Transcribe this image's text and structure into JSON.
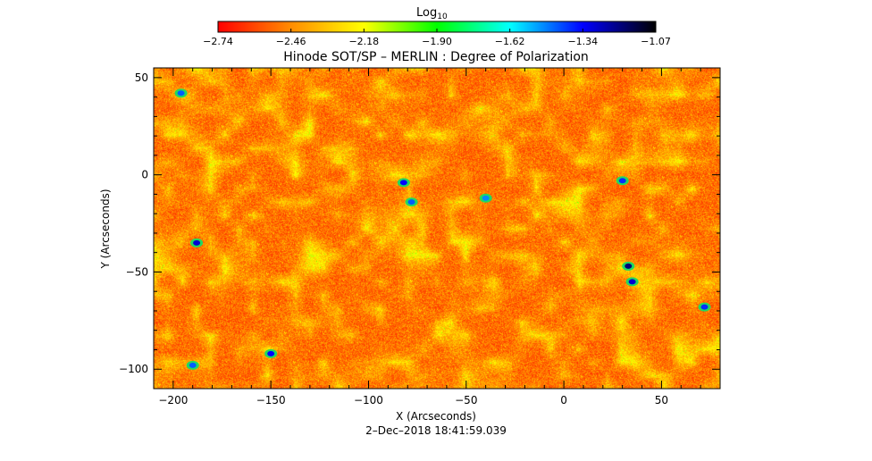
{
  "chart_data": {
    "type": "heatmap",
    "title": "Hinode SOT/SP – MERLIN : Degree of Polarization",
    "xlabel": "X (Arcseconds)",
    "ylabel": "Y (Arcseconds)",
    "timestamp": "2–Dec–2018 18:41:59.039",
    "colorbar": {
      "label": "Log",
      "label_subscript": "10",
      "min": -2.74,
      "max": -1.07,
      "ticks": [
        "−2.74",
        "−2.46",
        "−2.18",
        "−1.90",
        "−1.62",
        "−1.34",
        "−1.07"
      ],
      "colors": [
        "#ff0000",
        "#ff8c00",
        "#ffff00",
        "#00ff00",
        "#00ffff",
        "#0000ff",
        "#000000"
      ]
    },
    "xlim": [
      -210,
      80
    ],
    "ylim": [
      -110,
      55
    ],
    "x_ticks": [
      -200,
      -150,
      -100,
      -50,
      0,
      50
    ],
    "x_tick_labels": [
      "−200",
      "−150",
      "−100",
      "−50",
      "0",
      "50"
    ],
    "y_ticks": [
      50,
      0,
      -50,
      -100
    ],
    "y_tick_labels": [
      "50",
      "0",
      "−50",
      "−100"
    ],
    "map_description": "Mostly low polarization (orange/red) granular field with scattered yellow-green network and small blue/black high-polarization patches",
    "patches": [
      {
        "x": -196,
        "y": 42,
        "value": -1.45
      },
      {
        "x": -82,
        "y": -4,
        "value": -1.35
      },
      {
        "x": -78,
        "y": -14,
        "value": -1.45
      },
      {
        "x": -40,
        "y": -12,
        "value": -1.5
      },
      {
        "x": 30,
        "y": -3,
        "value": -1.4
      },
      {
        "x": 33,
        "y": -47,
        "value": -1.2
      },
      {
        "x": 35,
        "y": -55,
        "value": -1.3
      },
      {
        "x": -188,
        "y": -35,
        "value": -1.3
      },
      {
        "x": -150,
        "y": -92,
        "value": -1.35
      },
      {
        "x": -190,
        "y": -98,
        "value": -1.45
      },
      {
        "x": 72,
        "y": -68,
        "value": -1.4
      }
    ]
  }
}
